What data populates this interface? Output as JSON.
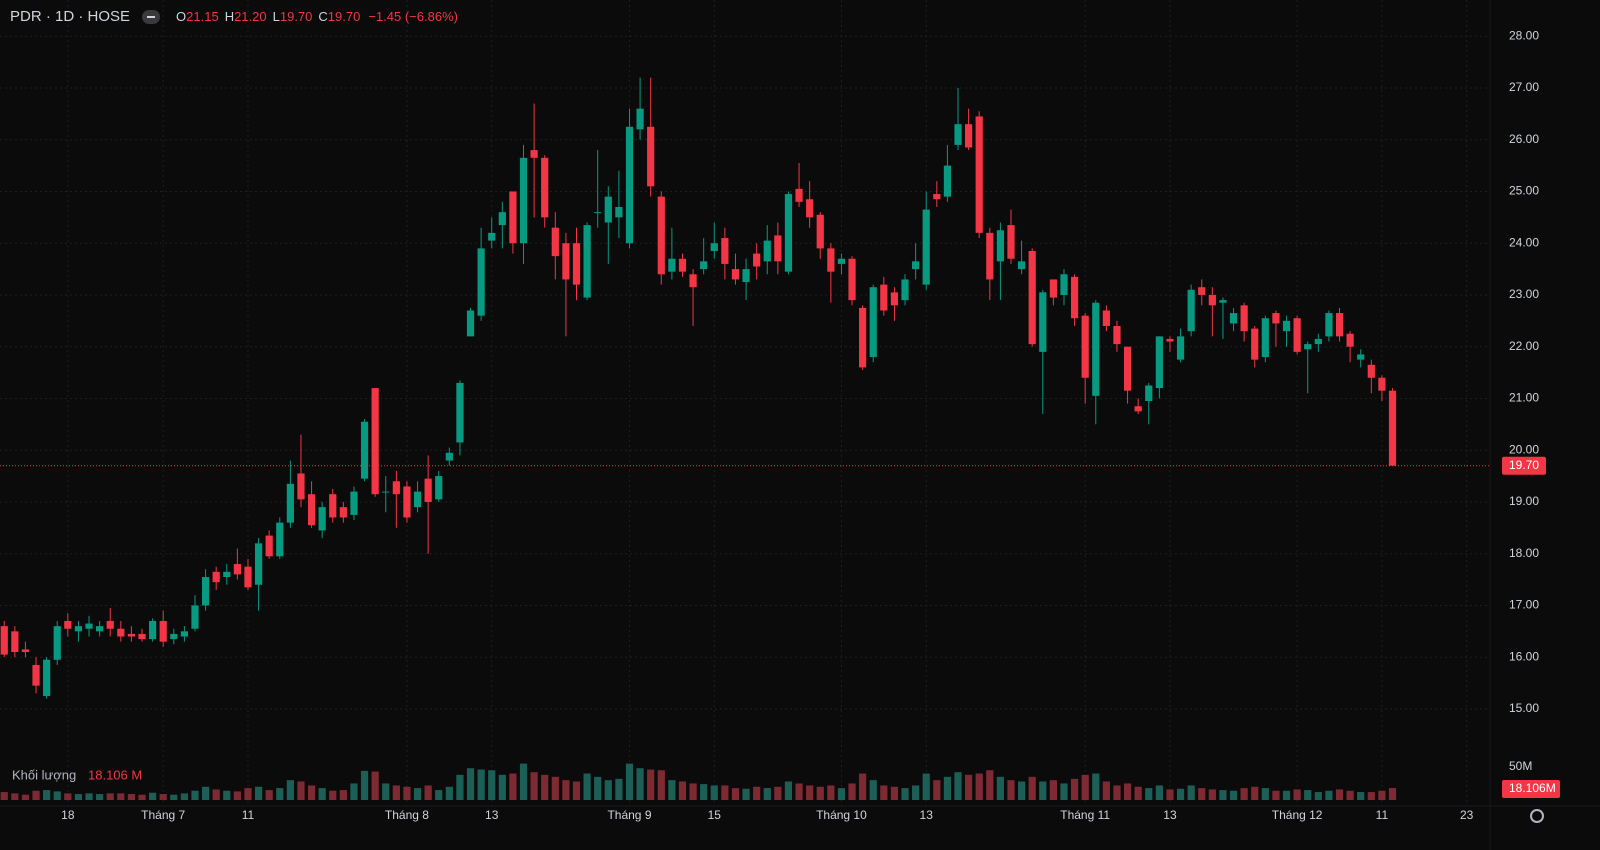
{
  "chart_data": {
    "type": "candlestick",
    "title": "PDR · 1D · HOSE",
    "legend": [
      {
        "key": "O",
        "label": "21.15"
      },
      {
        "key": "H",
        "label": "21.20"
      },
      {
        "key": "L",
        "label": "19.70"
      },
      {
        "key": "C",
        "label": "19.70"
      }
    ],
    "change_label": "−1.45 (−6.86%)",
    "up_color": "#089981",
    "down_color": "#f23645",
    "grid": true,
    "open": [
      16.6,
      16.5,
      16.15,
      15.85,
      15.25,
      15.95,
      16.7,
      16.5,
      16.55,
      16.5,
      16.7,
      16.55,
      16.45,
      16.45,
      16.35,
      16.7,
      16.35,
      16.4,
      16.55,
      17.0,
      17.65,
      17.55,
      17.8,
      17.75,
      17.4,
      18.35,
      17.95,
      18.6,
      19.55,
      19.15,
      18.45,
      19.15,
      18.9,
      18.75,
      19.45,
      21.2,
      19.2,
      19.4,
      19.3,
      18.9,
      19.45,
      19.05,
      19.8,
      20.15,
      22.2,
      22.6,
      24.05,
      24.35,
      25.0,
      24.0,
      25.8,
      25.65,
      24.3,
      24.0,
      24.0,
      22.95,
      24.6,
      24.4,
      24.5,
      24.0,
      26.2,
      26.25,
      24.9,
      23.45,
      23.7,
      23.4,
      23.5,
      23.85,
      24.1,
      23.5,
      23.25,
      23.8,
      23.65,
      24.15,
      23.45,
      25.05,
      24.85,
      24.55,
      23.9,
      23.6,
      23.7,
      22.75,
      21.8,
      23.2,
      23.05,
      22.9,
      23.5,
      23.2,
      24.95,
      24.9,
      25.9,
      26.3,
      26.45,
      24.2,
      23.65,
      24.35,
      23.5,
      23.85,
      21.9,
      23.3,
      23.0,
      23.35,
      22.6,
      21.05,
      22.7,
      22.4,
      22.0,
      20.85,
      20.95,
      21.2,
      22.15,
      21.75,
      22.3,
      23.15,
      23.0,
      22.85,
      22.45,
      22.8,
      22.35,
      21.8,
      22.65,
      22.3,
      22.55,
      21.95,
      22.05,
      22.2,
      22.65,
      22.25,
      21.75,
      21.65,
      21.4,
      21.15
    ],
    "high": [
      16.7,
      16.6,
      16.3,
      16.0,
      16.0,
      16.7,
      16.85,
      16.7,
      16.8,
      16.7,
      16.95,
      16.7,
      16.6,
      16.55,
      16.75,
      16.9,
      16.55,
      16.6,
      17.2,
      17.7,
      17.75,
      17.8,
      18.1,
      17.9,
      18.3,
      18.45,
      18.7,
      19.8,
      20.3,
      19.4,
      19.0,
      19.25,
      19.0,
      19.3,
      20.6,
      21.2,
      19.5,
      19.6,
      19.4,
      19.4,
      19.9,
      19.6,
      20.05,
      21.35,
      22.75,
      24.3,
      24.5,
      24.8,
      25.0,
      25.9,
      26.7,
      25.7,
      24.6,
      24.2,
      24.3,
      24.4,
      25.8,
      25.1,
      25.4,
      26.6,
      27.2,
      27.2,
      25.0,
      24.3,
      23.8,
      23.5,
      24.1,
      24.4,
      24.3,
      23.8,
      23.7,
      24.0,
      24.35,
      24.4,
      25.0,
      25.55,
      25.2,
      24.6,
      24.0,
      23.8,
      23.75,
      22.8,
      23.2,
      23.35,
      23.15,
      23.4,
      24.0,
      25.0,
      25.2,
      25.9,
      27.0,
      26.6,
      26.55,
      24.3,
      24.4,
      24.65,
      24.05,
      23.9,
      23.1,
      23.3,
      23.5,
      23.4,
      22.65,
      22.9,
      22.8,
      22.5,
      22.0,
      21.0,
      21.3,
      22.2,
      22.2,
      22.35,
      23.2,
      23.3,
      23.15,
      22.95,
      22.75,
      22.85,
      22.4,
      22.6,
      22.7,
      22.6,
      22.6,
      22.1,
      22.25,
      22.7,
      22.75,
      22.3,
      21.95,
      21.75,
      21.45,
      21.2
    ],
    "low": [
      16.0,
      16.0,
      16.0,
      15.3,
      15.2,
      15.85,
      16.4,
      16.3,
      16.4,
      16.4,
      16.4,
      16.3,
      16.3,
      16.3,
      16.3,
      16.2,
      16.25,
      16.3,
      16.5,
      16.9,
      17.3,
      17.4,
      17.5,
      17.3,
      16.9,
      17.9,
      17.9,
      18.5,
      18.9,
      18.5,
      18.3,
      18.6,
      18.6,
      18.65,
      19.4,
      19.1,
      18.8,
      18.5,
      18.6,
      18.8,
      18.0,
      19.0,
      19.7,
      19.9,
      22.2,
      22.5,
      23.9,
      23.9,
      23.8,
      23.6,
      24.5,
      24.3,
      23.3,
      22.2,
      22.9,
      22.9,
      24.3,
      23.6,
      24.1,
      23.9,
      26.0,
      24.9,
      23.2,
      23.3,
      23.35,
      22.4,
      23.4,
      23.7,
      23.3,
      23.2,
      22.9,
      23.3,
      23.4,
      23.4,
      23.4,
      24.7,
      24.3,
      23.7,
      22.85,
      23.4,
      22.8,
      21.55,
      21.7,
      22.6,
      22.5,
      22.8,
      23.3,
      23.1,
      24.7,
      24.8,
      25.8,
      25.8,
      24.1,
      22.9,
      22.9,
      23.6,
      23.4,
      22.0,
      20.7,
      22.8,
      22.8,
      22.4,
      20.9,
      20.5,
      22.3,
      21.9,
      20.9,
      20.7,
      20.5,
      21.0,
      21.9,
      21.7,
      22.2,
      22.8,
      22.2,
      22.15,
      22.3,
      22.1,
      21.6,
      21.7,
      22.0,
      22.0,
      21.85,
      21.1,
      21.9,
      22.1,
      22.1,
      21.7,
      21.6,
      21.1,
      20.95,
      19.7
    ],
    "close": [
      16.05,
      16.1,
      16.1,
      15.45,
      15.95,
      16.6,
      16.55,
      16.6,
      16.65,
      16.6,
      16.55,
      16.4,
      16.4,
      16.35,
      16.7,
      16.3,
      16.45,
      16.5,
      17.0,
      17.55,
      17.45,
      17.65,
      17.6,
      17.35,
      18.2,
      17.95,
      18.6,
      19.35,
      19.05,
      18.55,
      18.9,
      18.7,
      18.7,
      19.2,
      20.55,
      19.15,
      19.2,
      19.15,
      18.7,
      19.2,
      19.0,
      19.5,
      19.95,
      21.3,
      22.7,
      23.9,
      24.2,
      24.6,
      24.0,
      25.65,
      25.65,
      24.5,
      23.75,
      23.3,
      23.2,
      24.35,
      24.6,
      24.9,
      24.7,
      26.25,
      26.6,
      25.1,
      23.4,
      23.7,
      23.45,
      23.15,
      23.65,
      24.0,
      23.6,
      23.3,
      23.5,
      23.55,
      24.05,
      23.65,
      24.95,
      24.8,
      24.5,
      23.9,
      23.45,
      23.7,
      22.9,
      21.6,
      23.15,
      22.7,
      22.8,
      23.3,
      23.65,
      24.65,
      24.85,
      25.5,
      26.3,
      25.85,
      24.2,
      23.3,
      24.25,
      23.7,
      23.65,
      22.05,
      23.05,
      22.95,
      23.4,
      22.55,
      21.4,
      22.85,
      22.4,
      22.05,
      21.15,
      20.75,
      21.25,
      22.2,
      22.1,
      22.2,
      23.1,
      23.0,
      22.8,
      22.9,
      22.65,
      22.3,
      21.75,
      22.55,
      22.45,
      22.5,
      21.9,
      22.05,
      22.15,
      22.65,
      22.2,
      22.0,
      21.85,
      21.4,
      21.15,
      19.7
    ],
    "last_price_label": "19.70",
    "xlim": [
      -0.4,
      140.2
    ],
    "xticks": [
      {
        "value": 6,
        "label": "18"
      },
      {
        "value": 15,
        "label": "Tháng 7"
      },
      {
        "value": 23,
        "label": "11"
      },
      {
        "value": 38,
        "label": "Tháng 8"
      },
      {
        "value": 46,
        "label": "13"
      },
      {
        "value": 59,
        "label": "Tháng 9"
      },
      {
        "value": 67,
        "label": "15"
      },
      {
        "value": 79,
        "label": "Tháng 10"
      },
      {
        "value": 87,
        "label": "13"
      },
      {
        "value": 102,
        "label": "Tháng 11"
      },
      {
        "value": 110,
        "label": "13"
      },
      {
        "value": 122,
        "label": "Tháng 12"
      },
      {
        "value": 130,
        "label": "11"
      },
      {
        "value": 138,
        "label": "23"
      }
    ],
    "ylim": [
      14.11,
      28.7
    ],
    "yticks": [
      {
        "value": 15,
        "label": "15.00"
      },
      {
        "value": 16,
        "label": "16.00"
      },
      {
        "value": 17,
        "label": "17.00"
      },
      {
        "value": 18,
        "label": "18.00"
      },
      {
        "value": 19,
        "label": "19.00"
      },
      {
        "value": 20,
        "label": "20.00"
      },
      {
        "value": 21,
        "label": "21.00"
      },
      {
        "value": 22,
        "label": "22.00"
      },
      {
        "value": 23,
        "label": "23.00"
      },
      {
        "value": 24,
        "label": "24.00"
      },
      {
        "value": 25,
        "label": "25.00"
      },
      {
        "value": 26,
        "label": "26.00"
      },
      {
        "value": 27,
        "label": "27.00"
      },
      {
        "value": 28,
        "label": "28.00"
      }
    ],
    "volume": {
      "name": "Khối lượng",
      "up_color": "#1c5f57",
      "down_color": "#7d2a33",
      "values": [
        12,
        10,
        8,
        14,
        15,
        13,
        10,
        9,
        10,
        9,
        10,
        10,
        9,
        8,
        11,
        9,
        8,
        10,
        14,
        20,
        16,
        14,
        13,
        18,
        20,
        15,
        18,
        30,
        28,
        22,
        18,
        14,
        15,
        25,
        44,
        43,
        25,
        22,
        20,
        18,
        22,
        15,
        20,
        38,
        48,
        46,
        45,
        38,
        40,
        55,
        42,
        38,
        35,
        30,
        28,
        40,
        35,
        30,
        32,
        55,
        48,
        46,
        45,
        30,
        28,
        25,
        24,
        22,
        22,
        18,
        17,
        20,
        18,
        20,
        28,
        25,
        22,
        20,
        22,
        18,
        25,
        40,
        30,
        22,
        20,
        18,
        22,
        40,
        30,
        35,
        42,
        38,
        40,
        45,
        35,
        30,
        28,
        35,
        28,
        30,
        25,
        32,
        38,
        40,
        28,
        22,
        25,
        20,
        18,
        22,
        16,
        17,
        22,
        18,
        16,
        15,
        14,
        18,
        20,
        18,
        14,
        14,
        16,
        15,
        12,
        14,
        16,
        14,
        12,
        12,
        14,
        18.106
      ],
      "last_value_label": "18.106 M",
      "last_axis_label": "18.106M",
      "ylim": [
        0,
        68
      ],
      "yticks": [
        {
          "value": 50,
          "label": "50M"
        }
      ]
    }
  }
}
